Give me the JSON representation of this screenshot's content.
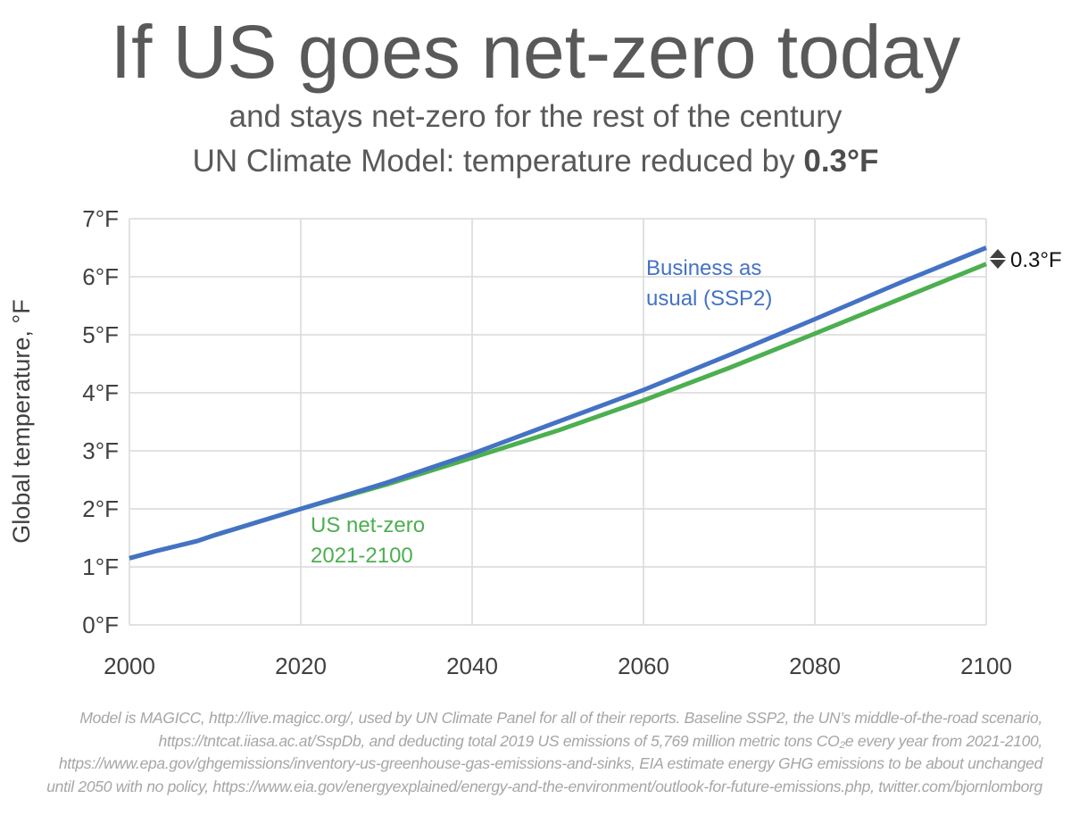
{
  "header": {
    "title": "If US goes net-zero today",
    "subtitle1": "and stays net-zero for the rest of the century",
    "subtitle2_prefix": "UN Climate Model: temperature reduced by ",
    "subtitle2_bold": "0.3°F"
  },
  "chart_data": {
    "type": "line",
    "title": "If US goes net-zero today",
    "xlabel": "",
    "ylabel": "Global temperature, °F",
    "xlim": [
      2000,
      2100
    ],
    "ylim": [
      0,
      7
    ],
    "grid": true,
    "x_ticks": [
      2000,
      2020,
      2040,
      2060,
      2080,
      2100
    ],
    "x_tick_labels": [
      "2000",
      "2020",
      "2040",
      "2060",
      "2080",
      "2100"
    ],
    "y_ticks": [
      0,
      1,
      2,
      3,
      4,
      5,
      6,
      7
    ],
    "y_tick_labels": [
      "0°F",
      "1°F",
      "2°F",
      "3°F",
      "4°F",
      "5°F",
      "6°F",
      "7°F"
    ],
    "series": [
      {
        "name": "Business as usual (SSP2)",
        "label_lines": [
          "Business as",
          "usual (SSP2)"
        ],
        "color": "#4472c4",
        "x": [
          2000,
          2003,
          2008,
          2010,
          2020,
          2030,
          2040,
          2050,
          2060,
          2070,
          2080,
          2090,
          2100
        ],
        "y": [
          1.15,
          1.27,
          1.45,
          1.55,
          2.0,
          2.45,
          2.95,
          3.5,
          4.05,
          4.65,
          5.27,
          5.9,
          6.5
        ]
      },
      {
        "name": "US net-zero 2021-2100",
        "label_lines": [
          "US net-zero",
          "2021-2100"
        ],
        "color": "#4caf50",
        "x": [
          2000,
          2003,
          2008,
          2010,
          2020,
          2030,
          2040,
          2050,
          2060,
          2070,
          2080,
          2090,
          2100
        ],
        "y": [
          1.15,
          1.27,
          1.45,
          1.55,
          2.0,
          2.42,
          2.88,
          3.35,
          3.87,
          4.43,
          5.02,
          5.62,
          6.22
        ]
      }
    ],
    "annotations": [
      {
        "text": "0.3°F",
        "at_x": 2100,
        "icon": "up-down-arrow-icon"
      }
    ]
  },
  "footer": {
    "source": "Model is MAGICC, http://live.magicc.org/, used by UN Climate Panel for all of their reports. Baseline SSP2, the UN’s middle-of-the-road scenario, https://tntcat.iiasa.ac.at/SspDb, and deducting total 2019 US emissions of 5,769 million metric tons CO₂e every year from 2021-2100, https://www.epa.gov/ghgemissions/inventory-us-greenhouse-gas-emissions-and-sinks, EIA estimate energy GHG emissions to be about unchanged until 2050 with no policy, https://www.eia.gov/energyexplained/energy-and-the-environment/outlook-for-future-emissions.php, twitter.com/bjornlomborg"
  }
}
